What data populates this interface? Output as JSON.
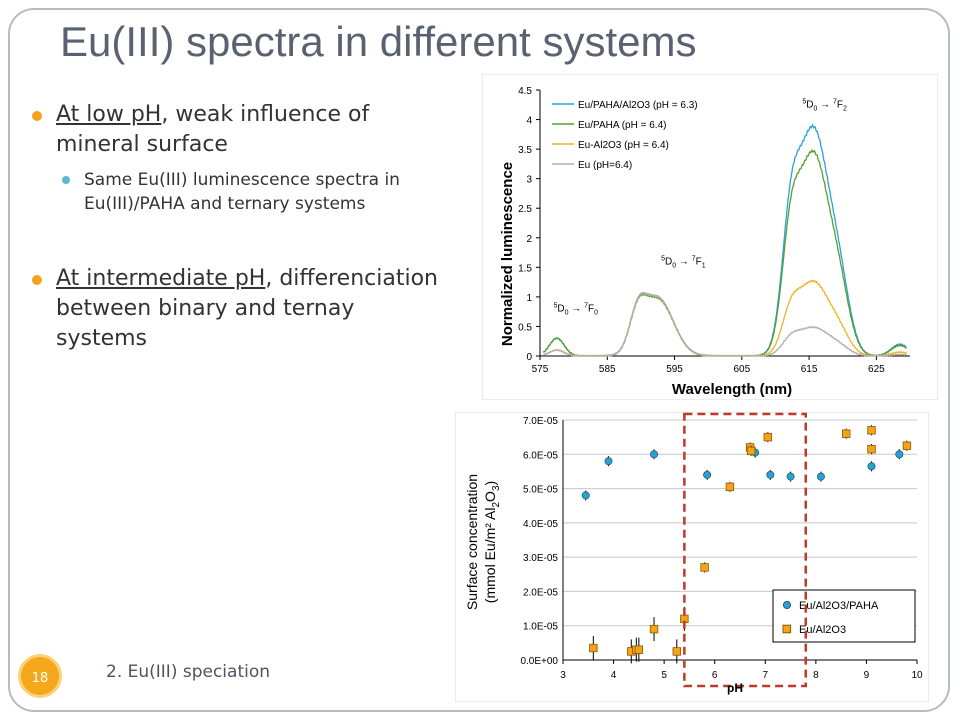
{
  "slide": {
    "title": "Eu(III) spectra in different systems",
    "number": "18",
    "footer": "2. Eu(III) speciation"
  },
  "bullets": [
    {
      "underlined": "At low pH",
      "rest": ", weak influence of mineral surface"
    },
    {
      "sub": "Same Eu(III) luminescence spectra in Eu(III)/PAHA and ternary systems"
    },
    {
      "underlined": "At intermediate pH",
      "rest": ", differenciation between binary and ternay systems"
    }
  ],
  "colors": {
    "accent": "#f5a81c",
    "bullet2": "#5fb7c9",
    "title": "#5a6170",
    "dashed_box": "#c0392b"
  },
  "chart_data": [
    {
      "type": "line",
      "xlabel": "Wavelength (nm)",
      "ylabel": "Normalized luminescence",
      "xlim": [
        575,
        630
      ],
      "ylim": [
        0,
        4.5
      ],
      "x_ticks": [
        575,
        585,
        595,
        605,
        615,
        625
      ],
      "y_ticks": [
        "0",
        "0.5",
        "1",
        "1.5",
        "2",
        "2.5",
        "3",
        "3.5",
        "4",
        "4.5"
      ],
      "legend_position": "top-left",
      "annotations": [
        {
          "pre": "5",
          "text": "D",
          "sub": "0",
          "arrow": "→",
          "pre2": "7",
          "text2": "F",
          "sub2": "2",
          "x": 614,
          "y": 4.2
        },
        {
          "pre": "5",
          "text": "D",
          "sub": "0",
          "arrow": "→",
          "pre2": "7",
          "text2": "F",
          "sub2": "1",
          "x": 593,
          "y": 1.55
        },
        {
          "pre": "5",
          "text": "D",
          "sub": "0",
          "arrow": "→",
          "pre2": "7",
          "text2": "F",
          "sub2": "0",
          "x": 577,
          "y": 0.75
        }
      ],
      "series": [
        {
          "name": "Eu/PAHA/Al2O3 (pH = 6.3)",
          "color": "#29a3d9",
          "peak": 3.98,
          "p1": 1.0,
          "p0": 0.3
        },
        {
          "name": "Eu/PAHA (pH = 6.4)",
          "color": "#5a9e2f",
          "peak": 3.55,
          "p1": 0.98,
          "p0": 0.3
        },
        {
          "name": "Eu-Al2O3 (pH = 6.4)",
          "color": "#f0b323",
          "peak": 1.3,
          "p1": 1.0,
          "p0": 0.1
        },
        {
          "name": "Eu (pH=6.4)",
          "color": "#b0b0b0",
          "peak": 0.5,
          "p1": 1.0,
          "p0": 0.1
        }
      ]
    },
    {
      "type": "scatter",
      "xlabel": "pH",
      "ylabel": "Surface concentration (mmol Eu/m² Al2O3)",
      "ylabel_line1": "Surface concentration",
      "ylabel_line2": "(mmol Eu/m² Al",
      "ylabel_sub": "2",
      "ylabel_mid": "O",
      "ylabel_sub2": "3",
      "ylabel_end": ")",
      "xlim": [
        3,
        10
      ],
      "ylim": [
        0,
        7e-05
      ],
      "x_ticks": [
        3,
        4,
        5,
        6,
        7,
        8,
        9,
        10
      ],
      "y_ticks": [
        "0.0E+00",
        "1.0E-05",
        "2.0E-05",
        "3.0E-05",
        "4.0E-05",
        "5.0E-05",
        "6.0E-05",
        "7.0E-05"
      ],
      "legend_position": "bottom-right",
      "highlight_range_ph": [
        5.4,
        7.8
      ],
      "series": [
        {
          "name": "Eu/Al2O3/PAHA",
          "color": "#2f9fd3",
          "marker": "circle",
          "points": [
            [
              3.45,
              4.8e-05
            ],
            [
              3.9,
              5.8e-05
            ],
            [
              4.8,
              6e-05
            ],
            [
              5.85,
              5.4e-05
            ],
            [
              6.8,
              6.05e-05
            ],
            [
              7.1,
              5.4e-05
            ],
            [
              7.5,
              5.35e-05
            ],
            [
              8.1,
              5.35e-05
            ],
            [
              9.1,
              5.65e-05
            ],
            [
              9.65,
              6e-05
            ]
          ]
        },
        {
          "name": "Eu/Al2O3",
          "color": "#f5a21b",
          "marker": "square",
          "points": [
            [
              3.6,
              3.5e-06
            ],
            [
              4.35,
              2.5e-06
            ],
            [
              4.45,
              3e-06
            ],
            [
              4.5,
              3e-06
            ],
            [
              4.8,
              9e-06
            ],
            [
              5.25,
              2.5e-06
            ],
            [
              5.4,
              1.2e-05
            ],
            [
              5.8,
              2.7e-05
            ],
            [
              6.3,
              5.05e-05
            ],
            [
              6.7,
              6.2e-05
            ],
            [
              6.72,
              6.1e-05
            ],
            [
              7.05,
              6.5e-05
            ],
            [
              8.6,
              6.6e-05
            ],
            [
              9.1,
              6.7e-05
            ],
            [
              9.1,
              6.15e-05
            ],
            [
              9.8,
              6.25e-05
            ]
          ]
        }
      ]
    }
  ]
}
